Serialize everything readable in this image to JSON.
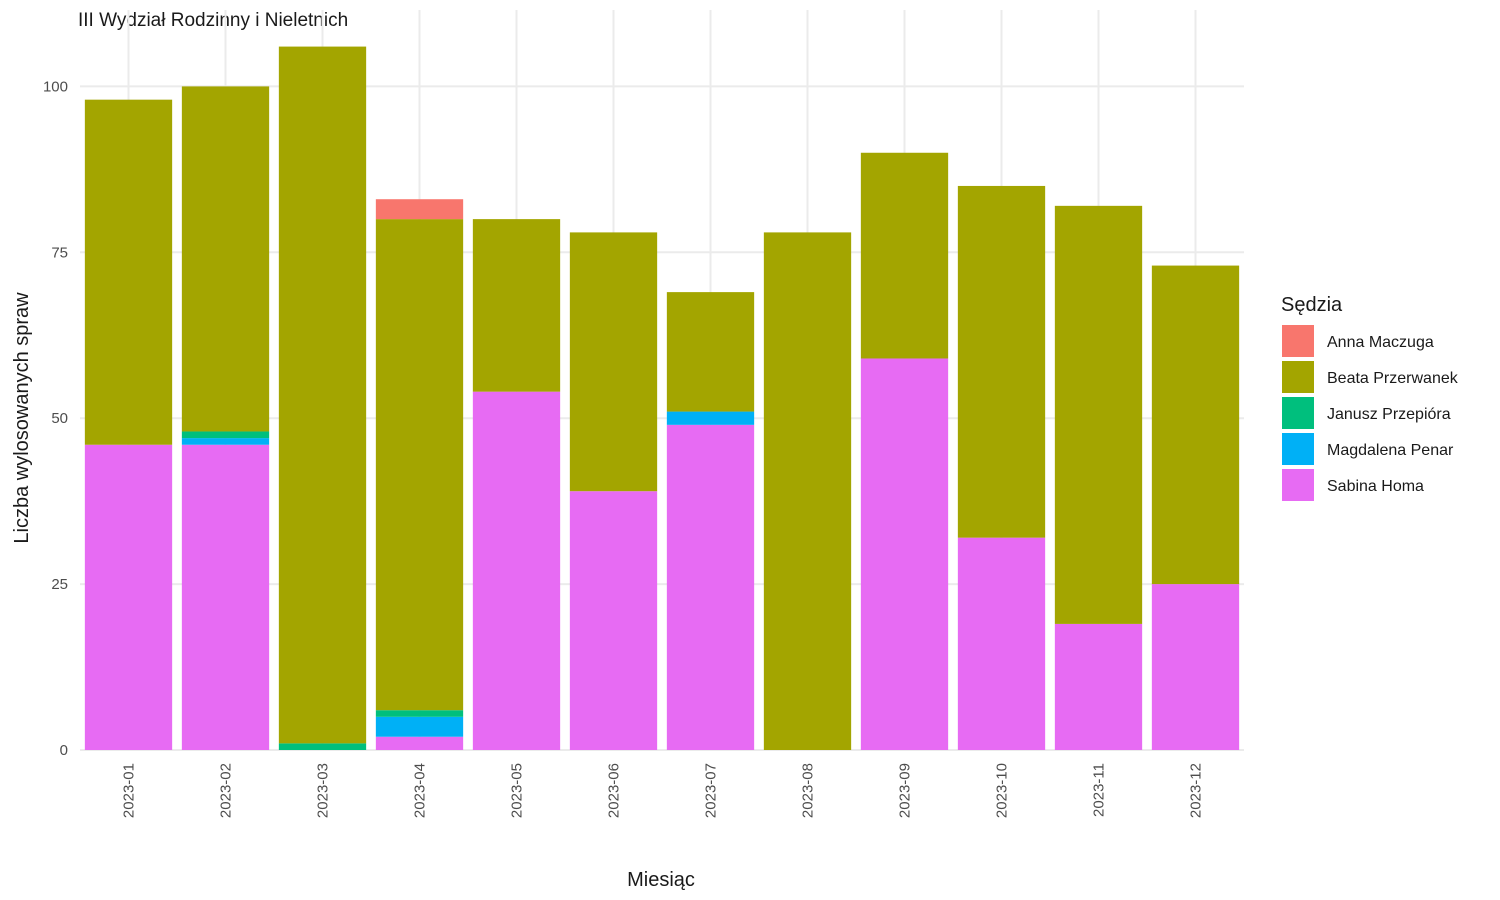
{
  "chart_data": {
    "type": "bar",
    "stacked": true,
    "title": "III Wydział Rodzinny i Nieletnich",
    "xlabel": "Miesiąc",
    "ylabel": "Liczba wylosowanych spraw",
    "ylim": [
      0,
      108
    ],
    "yticks": [
      0,
      25,
      50,
      75,
      100
    ],
    "grid": true,
    "legend": {
      "title": "Sędzia",
      "position": "right"
    },
    "categories": [
      "2023-01",
      "2023-02",
      "2023-03",
      "2023-04",
      "2023-05",
      "2023-06",
      "2023-07",
      "2023-08",
      "2023-09",
      "2023-10",
      "2023-11",
      "2023-12"
    ],
    "series": [
      {
        "name": "Sabina Homa",
        "color": "#E76BF3",
        "values": [
          46,
          46,
          0,
          2,
          54,
          39,
          49,
          0,
          59,
          32,
          19,
          25
        ]
      },
      {
        "name": "Magdalena Penar",
        "color": "#00B0F6",
        "values": [
          0,
          1,
          0,
          3,
          0,
          0,
          2,
          0,
          0,
          0,
          0,
          0
        ]
      },
      {
        "name": "Janusz Przepióra",
        "color": "#00BF7D",
        "values": [
          0,
          1,
          1,
          1,
          0,
          0,
          0,
          0,
          0,
          0,
          0,
          0
        ]
      },
      {
        "name": "Beata Przerwanek",
        "color": "#A3A500",
        "values": [
          52,
          52,
          105,
          74,
          26,
          39,
          18,
          78,
          31,
          53,
          63,
          48
        ]
      },
      {
        "name": "Anna Maczuga",
        "color": "#F8766D",
        "values": [
          0,
          0,
          0,
          3,
          0,
          0,
          0,
          0,
          0,
          0,
          0,
          0
        ]
      }
    ],
    "legend_order": [
      "Anna Maczuga",
      "Beata Przerwanek",
      "Janusz Przepióra",
      "Magdalena Penar",
      "Sabina Homa"
    ]
  }
}
